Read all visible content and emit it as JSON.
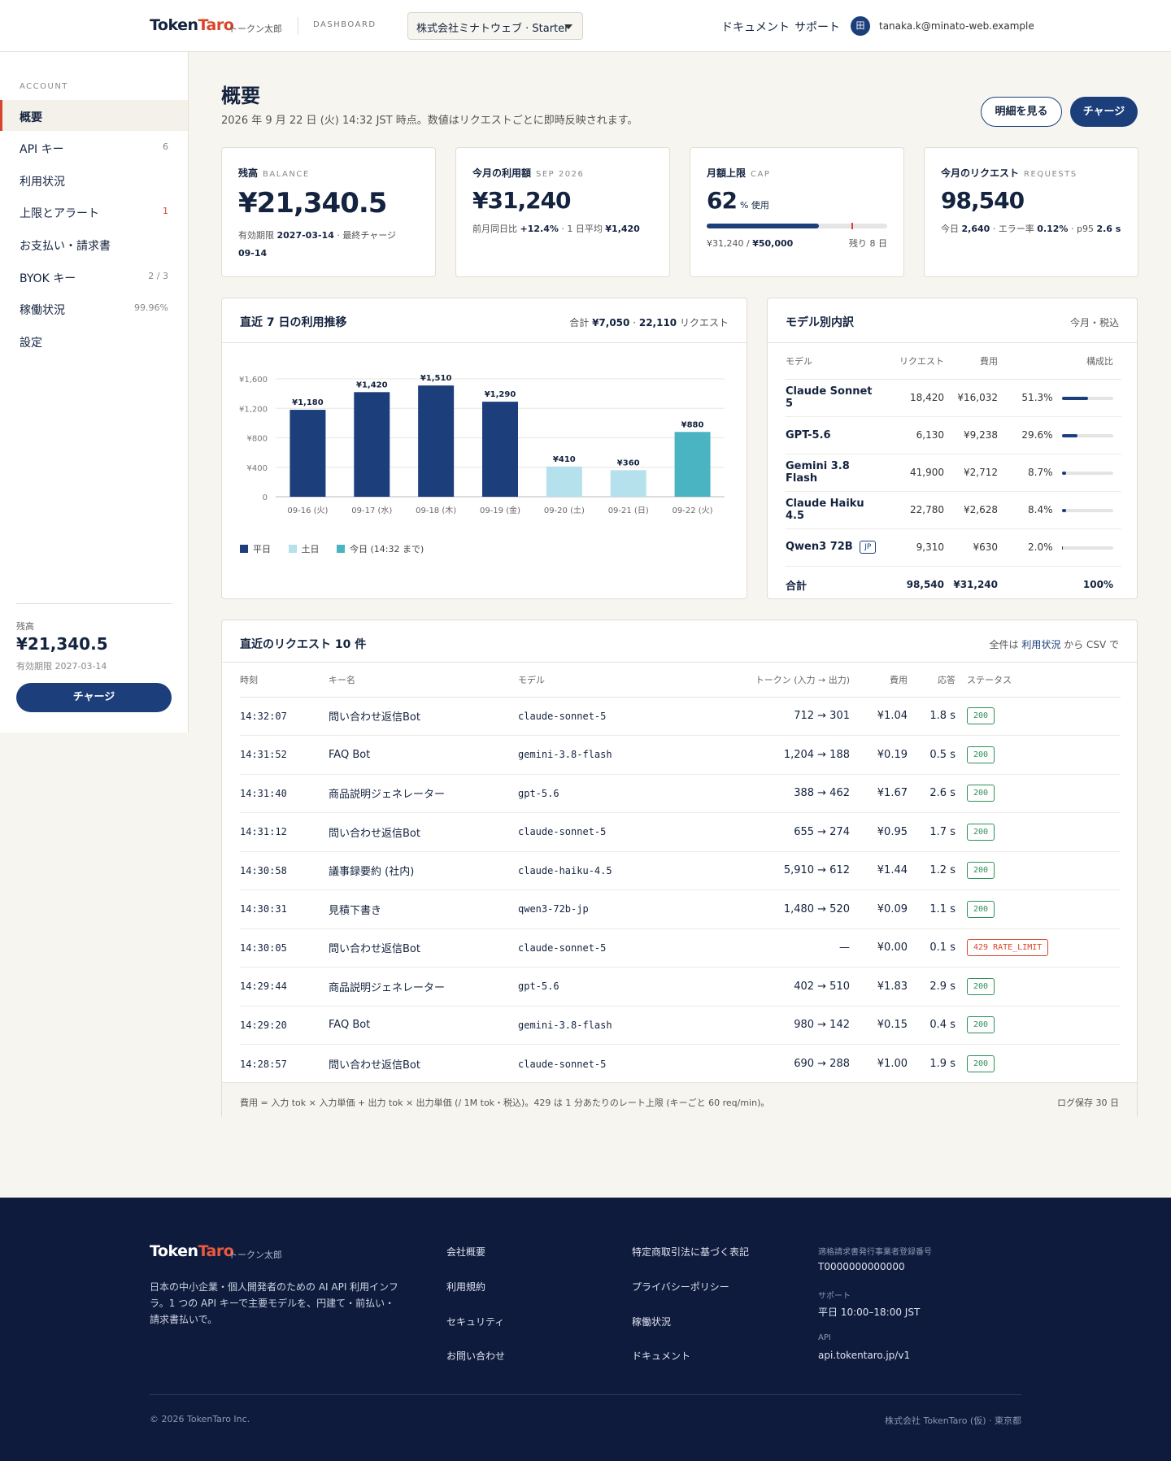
{
  "header": {
    "logo_a": "Token",
    "logo_b": "Taro",
    "logo_sub": "トークン太郎",
    "section": "DASHBOARD",
    "org": "株式会社ミナトウェブ · Starter",
    "links": [
      "ドキュメント",
      "サポート"
    ],
    "avatar": "田",
    "email": "tanaka.k@minato-web.example"
  },
  "sidebar": {
    "heading": "ACCOUNT",
    "items": [
      {
        "label": "概要",
        "count": ""
      },
      {
        "label": "API キー",
        "count": "6"
      },
      {
        "label": "利用状況",
        "count": ""
      },
      {
        "label": "上限とアラート",
        "count": "1"
      },
      {
        "label": "お支払い・請求書",
        "count": ""
      },
      {
        "label": "BYOK キー",
        "count": "2 / 3"
      },
      {
        "label": "稼働状況",
        "count": "99.96%"
      },
      {
        "label": "設定",
        "count": ""
      }
    ],
    "balance_label": "残高",
    "balance": "¥21,340.5",
    "expiry": "有効期限 2027-03-14",
    "charge": "チャージ"
  },
  "page": {
    "title": "概要",
    "subtitle": "2026 年 9 月 22 日 (火) 14:32 JST 時点。数値はリクエストごとに即時反映されます。",
    "btn_detail": "明細を見る",
    "btn_charge": "チャージ"
  },
  "stats": {
    "balance": {
      "label": "残高",
      "en": "BALANCE",
      "value": "¥21,340.5",
      "expiry_label": "有効期限",
      "expiry": "2027-03-14",
      "last_label": "最終チャージ",
      "last": "09-14"
    },
    "monthly": {
      "label": "今月の利用額",
      "en": "SEP 2026",
      "value": "¥31,240",
      "mom_label": "前月同日比",
      "mom": "+12.4%",
      "avg_label": "1 日平均",
      "avg": "¥1,420"
    },
    "cap": {
      "label": "月額上限",
      "en": "CAP",
      "value": "62",
      "unit": "% 使用",
      "fill": 0.62,
      "alert": 0.8,
      "used": "¥31,240",
      "limit": "¥50,000",
      "remain": "残り 8 日"
    },
    "requests": {
      "label": "今月のリクエスト",
      "en": "REQUESTS",
      "value": "98,540",
      "today_label": "今日",
      "today": "2,640",
      "err_label": "エラー率",
      "err": "0.12%",
      "p95_label": "p95",
      "p95": "2.6 s"
    }
  },
  "chart_card": {
    "title": "直近 7 日の利用推移",
    "sum_label": "合計",
    "sum": "¥7,050",
    "req": "22,110",
    "req_label": "リクエスト"
  },
  "chart_data": {
    "type": "bar",
    "categories": [
      "09-16 (火)",
      "09-17 (水)",
      "09-18 (木)",
      "09-19 (金)",
      "09-20 (土)",
      "09-21 (日)",
      "09-22 (火)"
    ],
    "values": [
      1180,
      1420,
      1510,
      1290,
      410,
      360,
      880
    ],
    "value_labels": [
      "¥1,180",
      "¥1,420",
      "¥1,510",
      "¥1,290",
      "¥410",
      "¥360",
      "¥880"
    ],
    "kinds": [
      "weekday",
      "weekday",
      "weekday",
      "weekday",
      "weekend",
      "weekend",
      "today"
    ],
    "yticks": [
      "0",
      "¥400",
      "¥800",
      "¥1,200",
      "¥1,600"
    ],
    "ytick_values": [
      0,
      400,
      800,
      1200,
      1600
    ],
    "ylim": [
      0,
      1600
    ],
    "grid": true,
    "colors": {
      "weekday": "#1c3f7c",
      "weekend": "#b5e1ec",
      "today": "#4bb4c2"
    },
    "legend": [
      "平日",
      "土日",
      "今日 (14:32 まで)"
    ],
    "legend_placement": "bottom-left"
  },
  "models": {
    "title": "モデル別内訳",
    "scope": "今月・税込",
    "headers": [
      "モデル",
      "リクエスト",
      "費用",
      "構成比"
    ],
    "rows": [
      {
        "name": "Claude Sonnet 5",
        "req": "18,420",
        "cost": "¥16,032",
        "share": "51.3%",
        "pct": 51.3,
        "badge": ""
      },
      {
        "name": "GPT-5.6",
        "req": "6,130",
        "cost": "¥9,238",
        "share": "29.6%",
        "pct": 29.6,
        "badge": ""
      },
      {
        "name": "Gemini 3.8 Flash",
        "req": "41,900",
        "cost": "¥2,712",
        "share": "8.7%",
        "pct": 8.7,
        "badge": ""
      },
      {
        "name": "Claude Haiku 4.5",
        "req": "22,780",
        "cost": "¥2,628",
        "share": "8.4%",
        "pct": 8.4,
        "badge": ""
      },
      {
        "name": "Qwen3 72B",
        "req": "9,310",
        "cost": "¥630",
        "share": "2.0%",
        "pct": 2.0,
        "badge": "JP"
      }
    ],
    "total": {
      "name": "合計",
      "req": "98,540",
      "cost": "¥31,240",
      "share": "100%"
    }
  },
  "requests": {
    "title": "直近のリクエスト 10 件",
    "link_pre": "全件は",
    "link": "利用状況",
    "link_post": "から CSV で",
    "headers": [
      "時刻",
      "キー名",
      "モデル",
      "トークン (入力 → 出力)",
      "費用",
      "応答",
      "ステータス"
    ],
    "rows": [
      {
        "time": "14:32:07",
        "key": "問い合わせ返信Bot",
        "model": "claude-sonnet-5",
        "tokens": "712 → 301",
        "cost": "¥1.04",
        "resp": "1.8 s",
        "status": "200"
      },
      {
        "time": "14:31:52",
        "key": "FAQ Bot",
        "model": "gemini-3.8-flash",
        "tokens": "1,204 → 188",
        "cost": "¥0.19",
        "resp": "0.5 s",
        "status": "200"
      },
      {
        "time": "14:31:40",
        "key": "商品説明ジェネレーター",
        "model": "gpt-5.6",
        "tokens": "388 → 462",
        "cost": "¥1.67",
        "resp": "2.6 s",
        "status": "200"
      },
      {
        "time": "14:31:12",
        "key": "問い合わせ返信Bot",
        "model": "claude-sonnet-5",
        "tokens": "655 → 274",
        "cost": "¥0.95",
        "resp": "1.7 s",
        "status": "200"
      },
      {
        "time": "14:30:58",
        "key": "議事録要約 (社内)",
        "model": "claude-haiku-4.5",
        "tokens": "5,910 → 612",
        "cost": "¥1.44",
        "resp": "1.2 s",
        "status": "200"
      },
      {
        "time": "14:30:31",
        "key": "見積下書き",
        "model": "qwen3-72b-jp",
        "tokens": "1,480 → 520",
        "cost": "¥0.09",
        "resp": "1.1 s",
        "status": "200"
      },
      {
        "time": "14:30:05",
        "key": "問い合わせ返信Bot",
        "model": "claude-sonnet-5",
        "tokens": "—",
        "cost": "¥0.00",
        "resp": "0.1 s",
        "status": "429 RATE_LIMIT"
      },
      {
        "time": "14:29:44",
        "key": "商品説明ジェネレーター",
        "model": "gpt-5.6",
        "tokens": "402 → 510",
        "cost": "¥1.83",
        "resp": "2.9 s",
        "status": "200"
      },
      {
        "time": "14:29:20",
        "key": "FAQ Bot",
        "model": "gemini-3.8-flash",
        "tokens": "980 → 142",
        "cost": "¥0.15",
        "resp": "0.4 s",
        "status": "200"
      },
      {
        "time": "14:28:57",
        "key": "問い合わせ返信Bot",
        "model": "claude-sonnet-5",
        "tokens": "690 → 288",
        "cost": "¥1.00",
        "resp": "1.9 s",
        "status": "200"
      }
    ],
    "footnote": "費用 = 入力 tok × 入力単価 + 出力 tok × 出力単価 (/ 1M tok・税込)。429 は 1 分あたりのレート上限 (キーごと 60 req/min)。",
    "retention": "ログ保存 30 日"
  },
  "footer": {
    "logo_a": "Token",
    "logo_b": "Taro",
    "logo_sub": "トークン太郎",
    "desc": "日本の中小企業・個人開発者のための AI API 利用インフラ。1 つの API キーで主要モデルを、円建て・前払い・請求書払いで。",
    "col1": [
      "会社概要",
      "利用規約",
      "セキュリティ",
      "お問い合わせ"
    ],
    "col2": [
      "特定商取引法に基づく表記",
      "プライバシーポリシー",
      "稼働状況",
      "ドキュメント"
    ],
    "info": [
      {
        "k": "適格請求書発行事業者登録番号",
        "v": "T0000000000000"
      },
      {
        "k": "サポート",
        "v": "平日 10:00–18:00 JST"
      },
      {
        "k": "API",
        "v": "api.tokentaro.jp/v1"
      }
    ],
    "copyright": "© 2026 TokenTaro Inc.",
    "corp": "株式会社 TokenTaro (仮) · 東京都"
  }
}
